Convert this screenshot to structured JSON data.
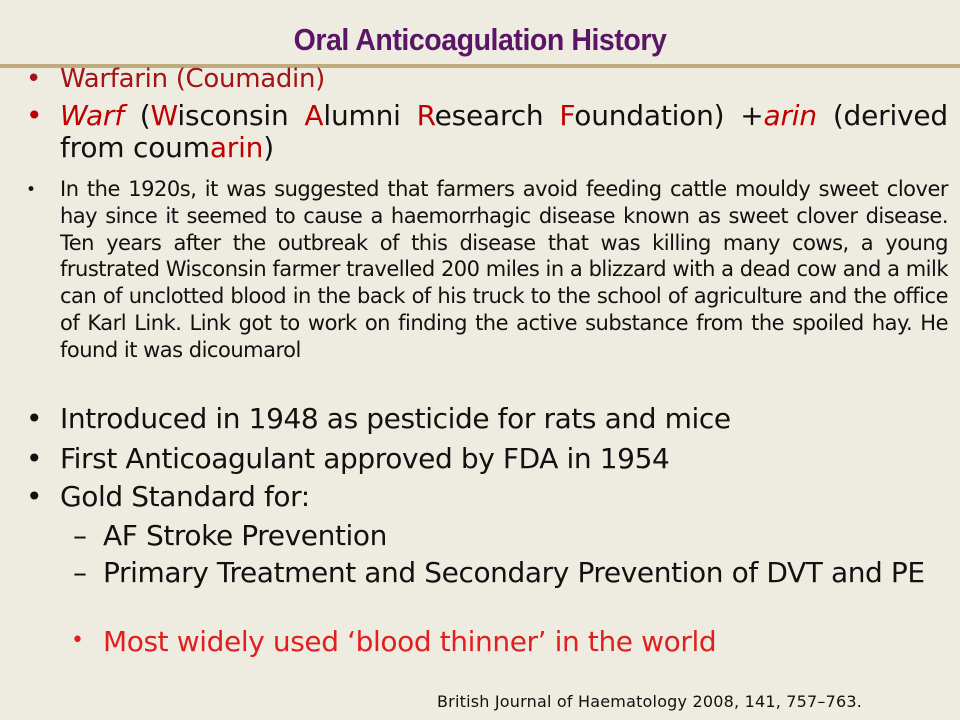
{
  "slide": {
    "title": "Oral Anticoagulation History",
    "bullet_glyph": "•",
    "dash_glyph": "–",
    "item1": "Warfarin (Coumadin)",
    "item2": {
      "warf": "Warf",
      "open_paren": " (",
      "w": "W",
      "isconsin": "isconsin ",
      "a": "A",
      "lumni": "lumni ",
      "r": "R",
      "esearch": "esearch ",
      "f": "F",
      "oundation": "oundation) +",
      "arin": "arin",
      "derived_prefix": " (derived from coum",
      "derived_arin": "arin",
      "close_paren": ")"
    },
    "item3": "In the 1920s, it was suggested that farmers avoid feeding cattle mouldy sweet clover hay since it seemed to cause a haemorrhagic disease known as sweet clover disease.  Ten years after the outbreak of this disease that was killing many cows, a young frustrated Wisconsin farmer travelled 200 miles in a blizzard with a dead cow and a milk can of unclotted blood in the back of his truck to the school of agriculture and the office of Karl Link. Link got to work on finding the active substance from the spoiled hay.  He found it was dicoumarol",
    "item4": "Introduced in 1948 as pesticide for rats and mice",
    "item5": "First Anticoagulant approved by FDA in 1954",
    "item6": "Gold Standard for:",
    "sub1": "AF Stroke Prevention",
    "sub2": "Primary Treatment and Secondary Prevention of DVT and PE",
    "sub3": "Most widely used ‘blood thinner’ in the world",
    "citation": "British Journal of Haematology 2008, 141, 757–763.",
    "colors": {
      "background": "#eeebe1",
      "title": "#5b1566",
      "rule": "#c0ab7e",
      "accent_red": "#c00000",
      "bright_red": "#e02020"
    }
  }
}
